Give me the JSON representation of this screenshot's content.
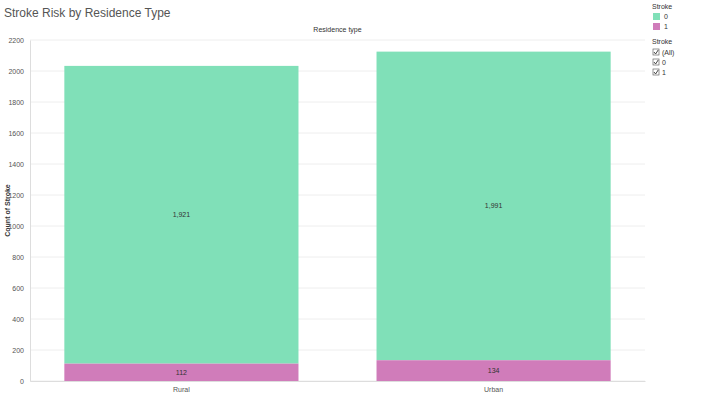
{
  "chart_data": {
    "type": "bar",
    "title": "Stroke Risk by Residence Type",
    "x_label": "Residence type",
    "y_label": "Count of Stroke",
    "categories": [
      "Rural",
      "Urban"
    ],
    "series": [
      {
        "name": "0",
        "color": "#80e0b8",
        "values": [
          1921,
          1991
        ],
        "value_labels": [
          "1,921",
          "1,991"
        ]
      },
      {
        "name": "1",
        "color": "#d07cba",
        "values": [
          112,
          134
        ]
      }
    ],
    "stacked": true,
    "data_labels": true,
    "ylim": [
      0,
      2200
    ],
    "yticks": [
      0,
      200,
      400,
      600,
      800,
      1000,
      1200,
      1400,
      1600,
      1800,
      2000,
      2200
    ],
    "grid": true,
    "legend": "top-right",
    "legend_title": "Stroke"
  },
  "filter_card": {
    "title": "Stroke",
    "options": [
      "(All)",
      "0",
      "1"
    ]
  }
}
